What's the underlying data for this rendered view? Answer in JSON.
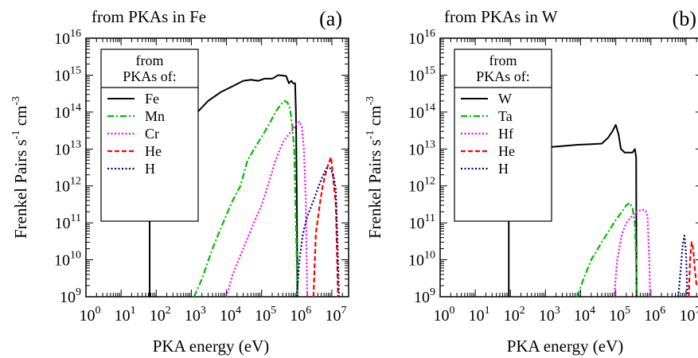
{
  "chart_data": [
    {
      "type": "line",
      "panel_label": "(a)",
      "title": "from PKAs in Fe",
      "xlabel": "PKA energy (eV)",
      "ylabel": "Frenkel Pairs s-1 cm-3",
      "ylabel_parts": {
        "base": "Frenkel Pairs s",
        "exp1": "-1",
        "mid": " cm",
        "exp2": "-3"
      },
      "xscale": "log",
      "yscale": "log",
      "xlim": [
        1,
        30000000
      ],
      "ylim": [
        1000000000,
        10000000000000000
      ],
      "xticks": [
        {
          "base": "10",
          "exp": "0"
        },
        {
          "base": "10",
          "exp": "1"
        },
        {
          "base": "10",
          "exp": "2"
        },
        {
          "base": "10",
          "exp": "3"
        },
        {
          "base": "10",
          "exp": "4"
        },
        {
          "base": "10",
          "exp": "5"
        },
        {
          "base": "10",
          "exp": "6"
        },
        {
          "base": "10",
          "exp": "7"
        }
      ],
      "yticks": [
        {
          "base": "10",
          "exp": "9"
        },
        {
          "base": "10",
          "exp": "10"
        },
        {
          "base": "10",
          "exp": "11"
        },
        {
          "base": "10",
          "exp": "12"
        },
        {
          "base": "10",
          "exp": "13"
        },
        {
          "base": "10",
          "exp": "14"
        },
        {
          "base": "10",
          "exp": "15"
        },
        {
          "base": "10",
          "exp": "16"
        }
      ],
      "legend": {
        "title_line1": "from",
        "title_line2": "PKAs of:",
        "placement": "top-left"
      },
      "series": [
        {
          "name": "Fe",
          "color": "#000000",
          "dash": "solid",
          "points": [
            [
              65,
              1000000000.0
            ],
            [
              65,
              200000000000.0
            ],
            [
              70,
              1000000000000.0
            ],
            [
              90,
              3000000000000.0
            ],
            [
              150,
              10000000000000.0
            ],
            [
              300,
              30000000000000.0
            ],
            [
              700,
              60000000000000.0
            ],
            [
              1500,
              100000000000000.0
            ],
            [
              3000,
              200000000000000.0
            ],
            [
              7000,
              350000000000000.0
            ],
            [
              15000,
              500000000000000.0
            ],
            [
              30000,
              700000000000000.0
            ],
            [
              50000,
              750000000000000.0
            ],
            [
              80000,
              700000000000000.0
            ],
            [
              120000,
              800000000000000.0
            ],
            [
              200000,
              800000000000000.0
            ],
            [
              300000,
              1000000000000000.0
            ],
            [
              500000,
              950000000000000.0
            ],
            [
              600000,
              600000000000000.0
            ],
            [
              700000,
              700000000000000.0
            ],
            [
              800000,
              600000000000000.0
            ],
            [
              900000,
              600000000000000.0
            ],
            [
              950000,
              100000000000000.0
            ],
            [
              1000000,
              1000000000000.0
            ],
            [
              1050000,
              1000000000.0
            ]
          ]
        },
        {
          "name": "Mn",
          "color": "#00bb00",
          "dash": "dashdot",
          "points": [
            [
              1200,
              1000000000.0
            ],
            [
              2000,
              3000000000.0
            ],
            [
              4000,
              20000000000.0
            ],
            [
              8000,
              100000000000.0
            ],
            [
              15000,
              400000000000.0
            ],
            [
              25000,
              1000000000000.0
            ],
            [
              40000,
              5000000000000.0
            ],
            [
              80000,
              15000000000000.0
            ],
            [
              150000,
              40000000000000.0
            ],
            [
              250000,
              100000000000000.0
            ],
            [
              350000,
              160000000000000.0
            ],
            [
              450000,
              200000000000000.0
            ],
            [
              550000,
              180000000000000.0
            ],
            [
              650000,
              120000000000000.0
            ],
            [
              750000,
              40000000000000.0
            ],
            [
              850000,
              10000000000000.0
            ],
            [
              950000,
              100000000000.0
            ],
            [
              1050000,
              1000000000.0
            ]
          ]
        },
        {
          "name": "Cr",
          "color": "#ff00ff",
          "dash": "dotted",
          "points": [
            [
              10000,
              1000000000.0
            ],
            [
              15000,
              4000000000.0
            ],
            [
              30000,
              20000000000.0
            ],
            [
              60000,
              100000000000.0
            ],
            [
              100000,
              300000000000.0
            ],
            [
              150000,
              1000000000000.0
            ],
            [
              250000,
              5000000000000.0
            ],
            [
              400000,
              15000000000000.0
            ],
            [
              600000,
              25000000000000.0
            ],
            [
              800000,
              35000000000000.0
            ],
            [
              1000000,
              50000000000000.0
            ],
            [
              1200000,
              55000000000000.0
            ],
            [
              1400000,
              40000000000000.0
            ],
            [
              1600000,
              10000000000000.0
            ],
            [
              1800000,
              500000000000.0
            ],
            [
              2000000,
              1000000000.0
            ]
          ]
        },
        {
          "name": "He",
          "color": "#ff0000",
          "dash": "dashed",
          "points": [
            [
              3000000,
              1000000000.0
            ],
            [
              3500000,
              50000000000.0
            ],
            [
              4500000,
              300000000000.0
            ],
            [
              5500000,
              1000000000000.0
            ],
            [
              6500000,
              2000000000000.0
            ],
            [
              8000000,
              4000000000000.0
            ],
            [
              9500000,
              6000000000000.0
            ],
            [
              11000000,
              1500000000000.0
            ],
            [
              13000000,
              300000000000.0
            ],
            [
              15000000,
              1000000000.0
            ]
          ]
        },
        {
          "name": "H",
          "color": "#000080",
          "dash": "dotted",
          "points": [
            [
              1000000,
              1000000000.0
            ],
            [
              1200000,
              10000000000.0
            ],
            [
              1500000,
              50000000000.0
            ],
            [
              2000000,
              150000000000.0
            ],
            [
              3000000,
              400000000000.0
            ],
            [
              5000000,
              1500000000000.0
            ],
            [
              7000000,
              3000000000000.0
            ],
            [
              9000000,
              3000000000000.0
            ],
            [
              11000000,
              2000000000000.0
            ],
            [
              13000000,
              800000000000.0
            ],
            [
              15000000,
              10000000000.0
            ],
            [
              16000000,
              1000000000.0
            ]
          ]
        }
      ]
    },
    {
      "type": "line",
      "panel_label": "(b)",
      "title": "from PKAs in W",
      "xlabel": "PKA energy (eV)",
      "ylabel": "Frenkel Pairs s-1 cm-3",
      "ylabel_parts": {
        "base": "Frenkel Pairs s",
        "exp1": "-1",
        "mid": " cm",
        "exp2": "-3"
      },
      "xscale": "log",
      "yscale": "log",
      "xlim": [
        1,
        30000000
      ],
      "ylim": [
        1000000000,
        10000000000000000
      ],
      "xticks": [
        {
          "base": "10",
          "exp": "0"
        },
        {
          "base": "10",
          "exp": "1"
        },
        {
          "base": "10",
          "exp": "2"
        },
        {
          "base": "10",
          "exp": "3"
        },
        {
          "base": "10",
          "exp": "4"
        },
        {
          "base": "10",
          "exp": "5"
        },
        {
          "base": "10",
          "exp": "6"
        },
        {
          "base": "10",
          "exp": "7"
        }
      ],
      "yticks": [
        {
          "base": "10",
          "exp": "9"
        },
        {
          "base": "10",
          "exp": "10"
        },
        {
          "base": "10",
          "exp": "11"
        },
        {
          "base": "10",
          "exp": "12"
        },
        {
          "base": "10",
          "exp": "13"
        },
        {
          "base": "10",
          "exp": "14"
        },
        {
          "base": "10",
          "exp": "15"
        },
        {
          "base": "10",
          "exp": "16"
        }
      ],
      "legend": {
        "title_line1": "from",
        "title_line2": "PKAs of:",
        "placement": "top-left"
      },
      "series": [
        {
          "name": "W",
          "color": "#000000",
          "dash": "solid",
          "points": [
            [
              90,
              1000000000.0
            ],
            [
              90,
              1000000000000.0
            ],
            [
              110,
              3000000000000.0
            ],
            [
              150,
              6000000000000.0
            ],
            [
              250,
              9000000000000.0
            ],
            [
              500,
              10000000000000.0
            ],
            [
              1000,
              11000000000000.0
            ],
            [
              3000,
              12000000000000.0
            ],
            [
              8000,
              13000000000000.0
            ],
            [
              20000,
              13500000000000.0
            ],
            [
              40000,
              14000000000000.0
            ],
            [
              60000,
              20000000000000.0
            ],
            [
              80000,
              30000000000000.0
            ],
            [
              100000,
              45000000000000.0
            ],
            [
              120000,
              25000000000000.0
            ],
            [
              140000,
              10000000000000.0
            ],
            [
              180000,
              8000000000000.0
            ],
            [
              250000,
              8000000000000.0
            ],
            [
              300000,
              8000000000000.0
            ],
            [
              350000,
              10000000000000.0
            ],
            [
              380000,
              6000000000000.0
            ],
            [
              390000,
              1000000000.0
            ]
          ]
        },
        {
          "name": "Ta",
          "color": "#00bb00",
          "dash": "dashdot",
          "points": [
            [
              8000,
              1000000000.0
            ],
            [
              12000,
              3000000000.0
            ],
            [
              20000,
              10000000000.0
            ],
            [
              40000,
              30000000000.0
            ],
            [
              70000,
              70000000000.0
            ],
            [
              100000,
              120000000000.0
            ],
            [
              150000,
              200000000000.0
            ],
            [
              200000,
              300000000000.0
            ],
            [
              250000,
              350000000000.0
            ],
            [
              300000,
              250000000000.0
            ],
            [
              350000,
              100000000000.0
            ],
            [
              380000,
              10000000000.0
            ],
            [
              400000,
              1000000000.0
            ]
          ]
        },
        {
          "name": "Hf",
          "color": "#ff00ff",
          "dash": "dotted",
          "points": [
            [
              90000,
              1000000000.0
            ],
            [
              110000,
              10000000000.0
            ],
            [
              150000,
              50000000000.0
            ],
            [
              200000,
              100000000000.0
            ],
            [
              300000,
              160000000000.0
            ],
            [
              400000,
              200000000000.0
            ],
            [
              550000,
              230000000000.0
            ],
            [
              700000,
              220000000000.0
            ],
            [
              800000,
              150000000000.0
            ],
            [
              900000,
              10000000000.0
            ],
            [
              950000,
              1000000000.0
            ]
          ]
        },
        {
          "name": "He",
          "color": "#ff0000",
          "dash": "dashed",
          "points": [
            [
              12000000,
              1000000000.0
            ],
            [
              13000000,
              10000000000.0
            ],
            [
              14500000,
              30000000000.0
            ],
            [
              16000000,
              20000000000.0
            ],
            [
              18000000,
              5000000000.0
            ],
            [
              20000000,
              2000000000.0
            ]
          ]
        },
        {
          "name": "H",
          "color": "#000080",
          "dash": "dotted",
          "points": [
            [
              6000000,
              1000000000.0
            ],
            [
              7000000,
              5000000000.0
            ],
            [
              8000000,
              25000000000.0
            ],
            [
              9000000,
              45000000000.0
            ],
            [
              10000000,
              15000000000.0
            ],
            [
              11000000,
              1000000000.0
            ]
          ]
        }
      ]
    }
  ]
}
